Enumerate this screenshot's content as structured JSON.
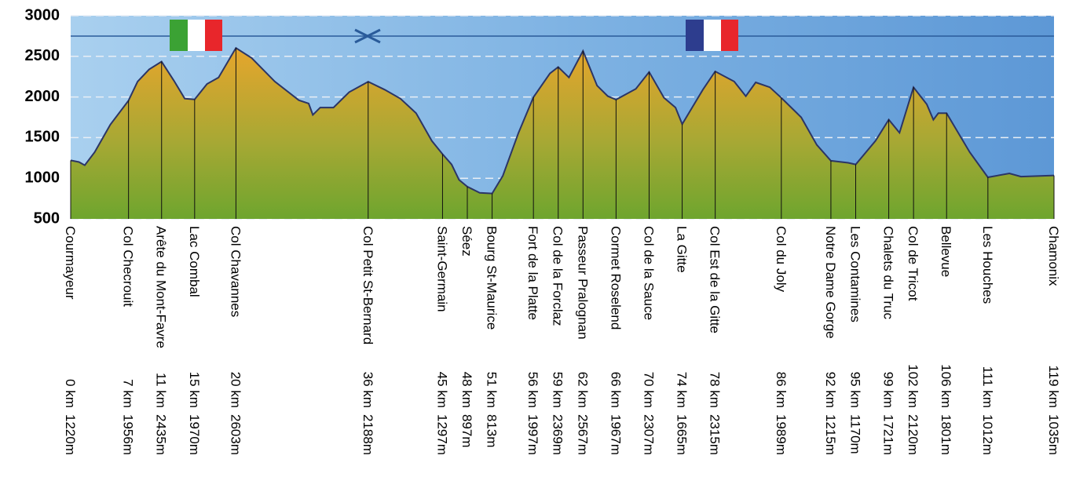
{
  "chart_data": {
    "type": "area",
    "categories": [
      "Courmayeur",
      "Col Checrouit",
      "Arête du Mont-Favre",
      "Lac Combal",
      "Col Chavannes",
      "Col Petit St-Bernard",
      "Saint-Germain",
      "Séez",
      "Bourg St-Maurice",
      "Fort de la Platte",
      "Col de la Forclaz",
      "Passeur Pralognan",
      "Cormet Roselend",
      "Col de la Sauce",
      "La Gitte",
      "Col Est de la Gitte",
      "Col du Joly",
      "Notre Dame Gorge",
      "Les Contamines",
      "Chalets du Truc",
      "Col de Tricot",
      "Bellevue",
      "Les Houches",
      "Chamonix"
    ],
    "x": [
      0,
      7,
      11,
      15,
      20,
      36,
      45,
      48,
      51,
      56,
      59,
      62,
      66,
      70,
      74,
      78,
      86,
      92,
      95,
      99,
      102,
      106,
      111,
      119
    ],
    "x_labels": [
      "0 km",
      "7 km",
      "11 km",
      "15 km",
      "20 km",
      "36 km",
      "45 km",
      "48 km",
      "51 km",
      "56 km",
      "59 km",
      "62 km",
      "66 km",
      "70 km",
      "74 km",
      "78 km",
      "86 km",
      "92 km",
      "95 km",
      "99 km",
      "102 km",
      "106 km",
      "111 km",
      "119 km"
    ],
    "values": [
      1220,
      1956,
      2435,
      1970,
      2603,
      2188,
      1297,
      897,
      813,
      1997,
      2369,
      2567,
      1967,
      2307,
      1665,
      2315,
      1989,
      1215,
      1170,
      1721,
      2120,
      1801,
      1012,
      1035
    ],
    "value_labels": [
      "1220m",
      "1956m",
      "2435m",
      "1970m",
      "2603m",
      "2188m",
      "1297m",
      "897m",
      "813m",
      "1997m",
      "2369m",
      "2567m",
      "1967m",
      "2307m",
      "1665m",
      "2315m",
      "1989m",
      "1215m",
      "1170m",
      "1721m",
      "2120m",
      "1801m",
      "1012m",
      "1035m"
    ],
    "profile": {
      "x": [
        0,
        1.0,
        1.7,
        2.9,
        4.8,
        7,
        8.1,
        9.5,
        11,
        12.5,
        13.8,
        15,
        16.5,
        17.9,
        20,
        21.9,
        24.7,
        27.6,
        28.8,
        29.3,
        30.2,
        31.8,
        33.7,
        36,
        38,
        39.9,
        41.8,
        43.7,
        45,
        46.1,
        47,
        48,
        49.5,
        51,
        52.3,
        54.2,
        56,
        58,
        59,
        60.3,
        62,
        63.7,
        65,
        66,
        68.4,
        70,
        71.8,
        73.2,
        74,
        76.5,
        78,
        80.3,
        81.7,
        82.9,
        84.6,
        86,
        88.4,
        90.3,
        92,
        94.1,
        95,
        97.4,
        99,
        100.3,
        102,
        103.6,
        104.4,
        105,
        106,
        108.8,
        111,
        113.6,
        115,
        119
      ],
      "values": [
        1220,
        1200,
        1160,
        1320,
        1660,
        1956,
        2190,
        2340,
        2435,
        2200,
        1980,
        1970,
        2160,
        2240,
        2603,
        2480,
        2190,
        1960,
        1920,
        1780,
        1870,
        1870,
        2060,
        2188,
        2090,
        1980,
        1800,
        1460,
        1297,
        1170,
        980,
        897,
        820,
        813,
        1030,
        1560,
        1997,
        2290,
        2369,
        2240,
        2567,
        2140,
        2010,
        1967,
        2100,
        2307,
        1990,
        1870,
        1665,
        2090,
        2315,
        2190,
        2010,
        2180,
        2120,
        1989,
        1750,
        1410,
        1215,
        1190,
        1170,
        1460,
        1721,
        1560,
        2120,
        1910,
        1720,
        1800,
        1801,
        1320,
        1012,
        1060,
        1020,
        1035
      ]
    },
    "xlim": [
      0,
      119
    ],
    "ylim": [
      500,
      3000
    ],
    "yticks": [
      500,
      1000,
      1500,
      2000,
      2500,
      3000
    ],
    "grid": true,
    "color": "#c8a030"
  }
}
